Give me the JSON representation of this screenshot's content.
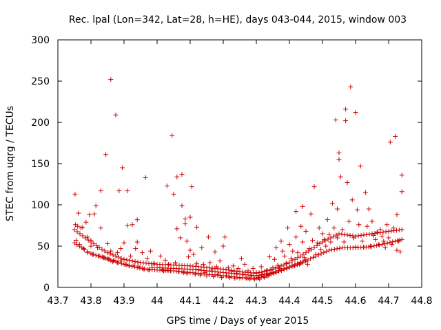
{
  "chart_data": {
    "type": "scatter",
    "title": "Rec. lpal (Lon=342, Lat=28, h=HE), days 043-044, 2015, window 003",
    "xlabel": "GPS time / Days of year 2015",
    "ylabel": "STEC from uqrg / TECUs",
    "xlim": [
      43.7,
      44.8
    ],
    "ylim": [
      0,
      300
    ],
    "xticks": [
      "43.7",
      "43.8",
      "43.9",
      "44",
      "44.1",
      "44.2",
      "44.3",
      "44.4",
      "44.5",
      "44.6",
      "44.7",
      "44.8"
    ],
    "yticks": [
      "0",
      "50",
      "100",
      "150",
      "200",
      "250",
      "300"
    ],
    "grid": false,
    "legend": "none",
    "marker": "plus",
    "color": "#cc0000",
    "points": [
      [
        43.752,
        113
      ],
      [
        43.753,
        76
      ],
      [
        43.755,
        57
      ],
      [
        43.76,
        74
      ],
      [
        43.762,
        90
      ],
      [
        43.765,
        52
      ],
      [
        43.77,
        72
      ],
      [
        43.775,
        73
      ],
      [
        43.778,
        47
      ],
      [
        43.785,
        79
      ],
      [
        43.79,
        61
      ],
      [
        43.79,
        42
      ],
      [
        43.795,
        88
      ],
      [
        43.8,
        57
      ],
      [
        43.8,
        50
      ],
      [
        43.805,
        40
      ],
      [
        43.81,
        89
      ],
      [
        43.815,
        99
      ],
      [
        43.82,
        48
      ],
      [
        43.825,
        38
      ],
      [
        43.83,
        117
      ],
      [
        43.83,
        72
      ],
      [
        43.835,
        37
      ],
      [
        43.84,
        36
      ],
      [
        43.845,
        161
      ],
      [
        43.85,
        53
      ],
      [
        43.85,
        35
      ],
      [
        43.855,
        34
      ],
      [
        43.86,
        252
      ],
      [
        43.86,
        44
      ],
      [
        43.865,
        31
      ],
      [
        43.87,
        33
      ],
      [
        43.875,
        209
      ],
      [
        43.88,
        42
      ],
      [
        43.88,
        30
      ],
      [
        43.885,
        117
      ],
      [
        43.89,
        47
      ],
      [
        43.89,
        32
      ],
      [
        43.895,
        145
      ],
      [
        43.9,
        54
      ],
      [
        43.905,
        28
      ],
      [
        43.91,
        117
      ],
      [
        43.91,
        75
      ],
      [
        43.915,
        26
      ],
      [
        43.92,
        38
      ],
      [
        43.925,
        76
      ],
      [
        43.93,
        27
      ],
      [
        43.935,
        47
      ],
      [
        43.94,
        82
      ],
      [
        43.94,
        55
      ],
      [
        43.945,
        25
      ],
      [
        43.95,
        30
      ],
      [
        43.955,
        42
      ],
      [
        43.96,
        22
      ],
      [
        43.965,
        133
      ],
      [
        43.97,
        35
      ],
      [
        43.975,
        21
      ],
      [
        43.98,
        44
      ],
      [
        43.985,
        24
      ],
      [
        43.99,
        29
      ],
      [
        44.01,
        38
      ],
      [
        44.015,
        22
      ],
      [
        44.02,
        20
      ],
      [
        44.025,
        33
      ],
      [
        44.03,
        123
      ],
      [
        44.03,
        21
      ],
      [
        44.035,
        28
      ],
      [
        44.04,
        20
      ],
      [
        44.045,
        184
      ],
      [
        44.05,
        113
      ],
      [
        44.05,
        20
      ],
      [
        44.055,
        30
      ],
      [
        44.06,
        134
      ],
      [
        44.06,
        71
      ],
      [
        44.065,
        19
      ],
      [
        44.07,
        60
      ],
      [
        44.075,
        137
      ],
      [
        44.075,
        99
      ],
      [
        44.08,
        18
      ],
      [
        44.085,
        83
      ],
      [
        44.085,
        77
      ],
      [
        44.09,
        56
      ],
      [
        44.09,
        17
      ],
      [
        44.095,
        37
      ],
      [
        44.1,
        85
      ],
      [
        44.1,
        45
      ],
      [
        44.105,
        122
      ],
      [
        44.11,
        40
      ],
      [
        44.115,
        16
      ],
      [
        44.12,
        73
      ],
      [
        44.12,
        29
      ],
      [
        44.125,
        22
      ],
      [
        44.13,
        15
      ],
      [
        44.135,
        48
      ],
      [
        44.14,
        28
      ],
      [
        44.145,
        18
      ],
      [
        44.15,
        14
      ],
      [
        44.155,
        61
      ],
      [
        44.16,
        30
      ],
      [
        44.165,
        21
      ],
      [
        44.17,
        13
      ],
      [
        44.175,
        43
      ],
      [
        44.18,
        25
      ],
      [
        44.185,
        16
      ],
      [
        44.19,
        32
      ],
      [
        44.195,
        12
      ],
      [
        44.2,
        50
      ],
      [
        44.2,
        22
      ],
      [
        44.205,
        61
      ],
      [
        44.21,
        14
      ],
      [
        44.215,
        24
      ],
      [
        44.22,
        12
      ],
      [
        44.225,
        19
      ],
      [
        44.23,
        26
      ],
      [
        44.235,
        11
      ],
      [
        44.24,
        17
      ],
      [
        44.245,
        23
      ],
      [
        44.25,
        11
      ],
      [
        44.255,
        35
      ],
      [
        44.26,
        16
      ],
      [
        44.265,
        28
      ],
      [
        44.27,
        11
      ],
      [
        44.275,
        20
      ],
      [
        44.28,
        10
      ],
      [
        44.285,
        14
      ],
      [
        44.29,
        23
      ],
      [
        44.295,
        10
      ],
      [
        44.3,
        18
      ],
      [
        44.305,
        12
      ],
      [
        44.31,
        10
      ],
      [
        44.315,
        25
      ],
      [
        44.32,
        16
      ],
      [
        44.325,
        12
      ],
      [
        44.33,
        20
      ],
      [
        44.335,
        14
      ],
      [
        44.34,
        37
      ],
      [
        44.345,
        21
      ],
      [
        44.35,
        24
      ],
      [
        44.355,
        34
      ],
      [
        44.36,
        48
      ],
      [
        44.365,
        27
      ],
      [
        44.37,
        23
      ],
      [
        44.375,
        56
      ],
      [
        44.38,
        44
      ],
      [
        44.385,
        38
      ],
      [
        44.39,
        29
      ],
      [
        44.395,
        72
      ],
      [
        44.4,
        52
      ],
      [
        44.405,
        35
      ],
      [
        44.41,
        44
      ],
      [
        44.415,
        26
      ],
      [
        44.42,
        92
      ],
      [
        44.42,
        61
      ],
      [
        44.425,
        42
      ],
      [
        44.43,
        28
      ],
      [
        44.435,
        74
      ],
      [
        44.44,
        98
      ],
      [
        44.44,
        55
      ],
      [
        44.445,
        36
      ],
      [
        44.45,
        68
      ],
      [
        44.455,
        28
      ],
      [
        44.46,
        47
      ],
      [
        44.465,
        89
      ],
      [
        44.47,
        57
      ],
      [
        44.475,
        122
      ],
      [
        44.48,
        40
      ],
      [
        44.485,
        54
      ],
      [
        44.49,
        72
      ],
      [
        44.495,
        46
      ],
      [
        44.5,
        65
      ],
      [
        44.505,
        58
      ],
      [
        44.51,
        50
      ],
      [
        44.515,
        82
      ],
      [
        44.52,
        64
      ],
      [
        44.525,
        55
      ],
      [
        44.53,
        102
      ],
      [
        44.535,
        72
      ],
      [
        44.54,
        203
      ],
      [
        44.545,
        95
      ],
      [
        44.545,
        60
      ],
      [
        44.55,
        163
      ],
      [
        44.55,
        155
      ],
      [
        44.555,
        134
      ],
      [
        44.56,
        70
      ],
      [
        44.565,
        55
      ],
      [
        44.57,
        216
      ],
      [
        44.57,
        202
      ],
      [
        44.575,
        127
      ],
      [
        44.58,
        80
      ],
      [
        44.585,
        243
      ],
      [
        44.59,
        106
      ],
      [
        44.595,
        60
      ],
      [
        44.6,
        212
      ],
      [
        44.6,
        49
      ],
      [
        44.605,
        94
      ],
      [
        44.61,
        76
      ],
      [
        44.615,
        147
      ],
      [
        44.62,
        56
      ],
      [
        44.625,
        49
      ],
      [
        44.63,
        115
      ],
      [
        44.635,
        74
      ],
      [
        44.64,
        95
      ],
      [
        44.645,
        50
      ],
      [
        44.65,
        80
      ],
      [
        44.655,
        63
      ],
      [
        44.66,
        58
      ],
      [
        44.665,
        67
      ],
      [
        44.67,
        52
      ],
      [
        44.675,
        70
      ],
      [
        44.68,
        62
      ],
      [
        44.685,
        56
      ],
      [
        44.69,
        48
      ],
      [
        44.695,
        76
      ],
      [
        44.7,
        60
      ],
      [
        44.705,
        176
      ],
      [
        44.71,
        52
      ],
      [
        44.715,
        72
      ],
      [
        44.72,
        183
      ],
      [
        44.725,
        88
      ],
      [
        44.725,
        45
      ],
      [
        44.73,
        56
      ],
      [
        44.735,
        43
      ],
      [
        44.74,
        136
      ],
      [
        44.74,
        116
      ]
    ],
    "envelopes": [
      {
        "x": [
          43.75,
          43.78,
          43.8,
          43.83,
          43.86,
          43.9,
          43.94,
          43.97,
          44.0,
          44.05,
          44.1,
          44.15,
          44.2,
          44.25,
          44.3,
          44.33,
          44.36,
          44.4,
          44.44,
          44.48,
          44.52,
          44.56,
          44.6,
          44.64,
          44.68,
          44.72,
          44.74
        ],
        "y": [
          54,
          46,
          41,
          37,
          33,
          28,
          24,
          22,
          21,
          20,
          18,
          16,
          14,
          12,
          11,
          14,
          18,
          24,
          30,
          38,
          45,
          48,
          48,
          49,
          52,
          56,
          58
        ]
      },
      {
        "x": [
          43.75,
          43.8,
          43.85,
          43.9,
          43.95,
          44.0,
          44.05,
          44.1,
          44.15,
          44.2,
          44.25,
          44.3,
          44.35,
          44.4,
          44.45,
          44.5,
          44.55,
          44.6,
          44.65,
          44.7,
          44.74
        ],
        "y": [
          70,
          55,
          42,
          34,
          30,
          28,
          27,
          26,
          24,
          22,
          19,
          17,
          22,
          30,
          42,
          55,
          65,
          62,
          65,
          68,
          70
        ]
      },
      {
        "x": [
          44.0,
          44.05,
          44.1,
          44.15,
          44.2,
          44.25,
          44.3,
          44.35,
          44.4,
          44.45
        ],
        "y": [
          24,
          23,
          22,
          20,
          18,
          16,
          14,
          18,
          25,
          33
        ]
      }
    ]
  }
}
